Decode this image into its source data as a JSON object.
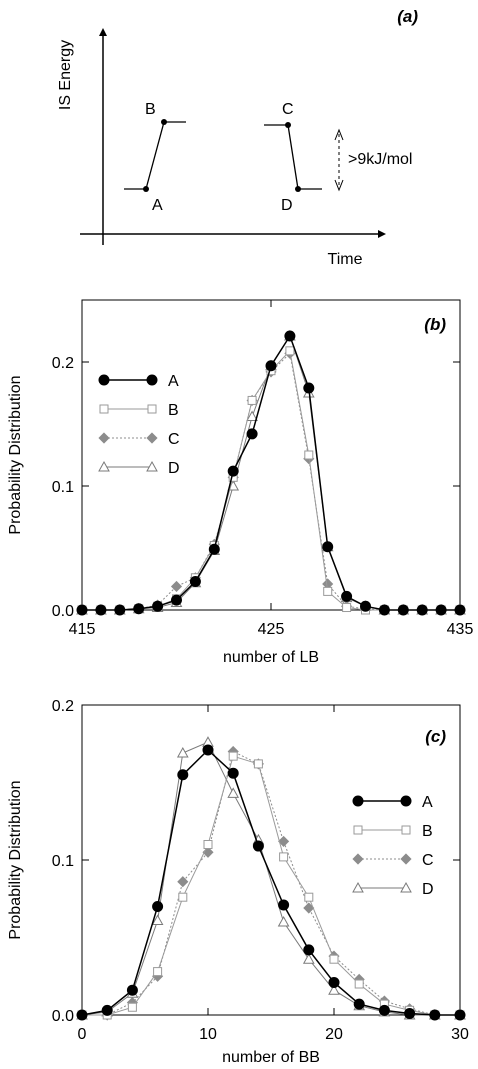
{
  "colors": {
    "series_A": "#000000",
    "series_B": "#9a9a9a",
    "series_C": "#8c8c8c",
    "series_D": "#7a7a7a",
    "axis": "#000000"
  },
  "chart_data": [
    {
      "type": "diagram",
      "panel_label": "(a)",
      "xlabel": "Time",
      "ylabel": "IS Energy",
      "points": [
        {
          "label": "A"
        },
        {
          "label": "B"
        },
        {
          "label": "C"
        },
        {
          "label": "D"
        }
      ],
      "annotation": ">9kJ/mol"
    },
    {
      "type": "line",
      "panel_label": "(b)",
      "xlabel": "number of LB",
      "ylabel": "Probability Distribution",
      "xlim": [
        415,
        435
      ],
      "ylim": [
        0,
        0.25
      ],
      "xticks": [
        415,
        425,
        435
      ],
      "yticks": [
        0.0,
        0.1,
        0.2
      ],
      "ytick_labels": [
        "0.0",
        "0.1",
        "0.2"
      ],
      "legend": "left",
      "x": [
        415,
        416,
        417,
        418,
        419,
        420,
        421,
        422,
        423,
        424,
        425,
        426,
        427,
        428,
        429,
        430,
        431,
        432,
        433,
        434,
        435
      ],
      "series": [
        {
          "name": "A",
          "marker": "circle-filled",
          "values": [
            0,
            0,
            0,
            0.001,
            0.003,
            0.008,
            0.023,
            0.049,
            0.112,
            0.142,
            0.197,
            0.221,
            0.179,
            0.051,
            0.011,
            0.003,
            0,
            0,
            0,
            0,
            0
          ]
        },
        {
          "name": "B",
          "marker": "square-open",
          "values": [
            0,
            0,
            0,
            0.001,
            0.003,
            0.009,
            0.026,
            0.052,
            0.107,
            0.169,
            0.193,
            0.209,
            0.125,
            0.015,
            0.002,
            0,
            0,
            0,
            0,
            0,
            0
          ]
        },
        {
          "name": "C",
          "marker": "diamond-filled",
          "values": [
            0,
            0,
            0,
            0.001,
            0.004,
            0.019,
            0.026,
            0.053,
            0.107,
            0.169,
            0.192,
            0.207,
            0.122,
            0.021,
            0.003,
            0.001,
            0,
            0,
            0,
            0,
            0
          ]
        },
        {
          "name": "D",
          "marker": "triangle-open",
          "values": [
            0,
            0,
            0,
            0.001,
            0.002,
            0.006,
            0.022,
            0.048,
            0.1,
            0.156,
            0.197,
            0.221,
            0.175,
            0.051,
            0.01,
            0.003,
            0,
            0,
            0,
            0,
            0
          ]
        }
      ]
    },
    {
      "type": "line",
      "panel_label": "(c)",
      "xlabel": "number of BB",
      "ylabel": "Probability Distribution",
      "xlim": [
        0,
        30
      ],
      "ylim": [
        0,
        0.2
      ],
      "xticks": [
        0,
        10,
        20,
        30
      ],
      "yticks": [
        0.0,
        0.1,
        0.2
      ],
      "ytick_labels": [
        "0.0",
        "0.1",
        "0.2"
      ],
      "legend": "right",
      "x": [
        0,
        2,
        4,
        6,
        8,
        10,
        12,
        14,
        16,
        18,
        20,
        22,
        24,
        26,
        28,
        30
      ],
      "series": [
        {
          "name": "A",
          "marker": "circle-filled",
          "values": [
            0,
            0.003,
            0.016,
            0.07,
            0.155,
            0.171,
            0.156,
            0.109,
            0.071,
            0.042,
            0.021,
            0.007,
            0.003,
            0.001,
            0,
            0
          ]
        },
        {
          "name": "B",
          "marker": "square-open",
          "values": [
            0,
            0,
            0.005,
            0.028,
            0.076,
            0.11,
            0.167,
            0.162,
            0.102,
            0.076,
            0.036,
            0.02,
            0.007,
            0.003,
            0,
            0
          ]
        },
        {
          "name": "C",
          "marker": "diamond-filled",
          "values": [
            0,
            0,
            0.008,
            0.025,
            0.086,
            0.105,
            0.17,
            0.162,
            0.112,
            0.069,
            0.038,
            0.023,
            0.009,
            0.004,
            0,
            0
          ]
        },
        {
          "name": "D",
          "marker": "triangle-open",
          "values": [
            0,
            0.002,
            0.014,
            0.061,
            0.169,
            0.176,
            0.143,
            0.113,
            0.06,
            0.036,
            0.016,
            0.006,
            0.002,
            0,
            0,
            0
          ]
        }
      ]
    }
  ]
}
